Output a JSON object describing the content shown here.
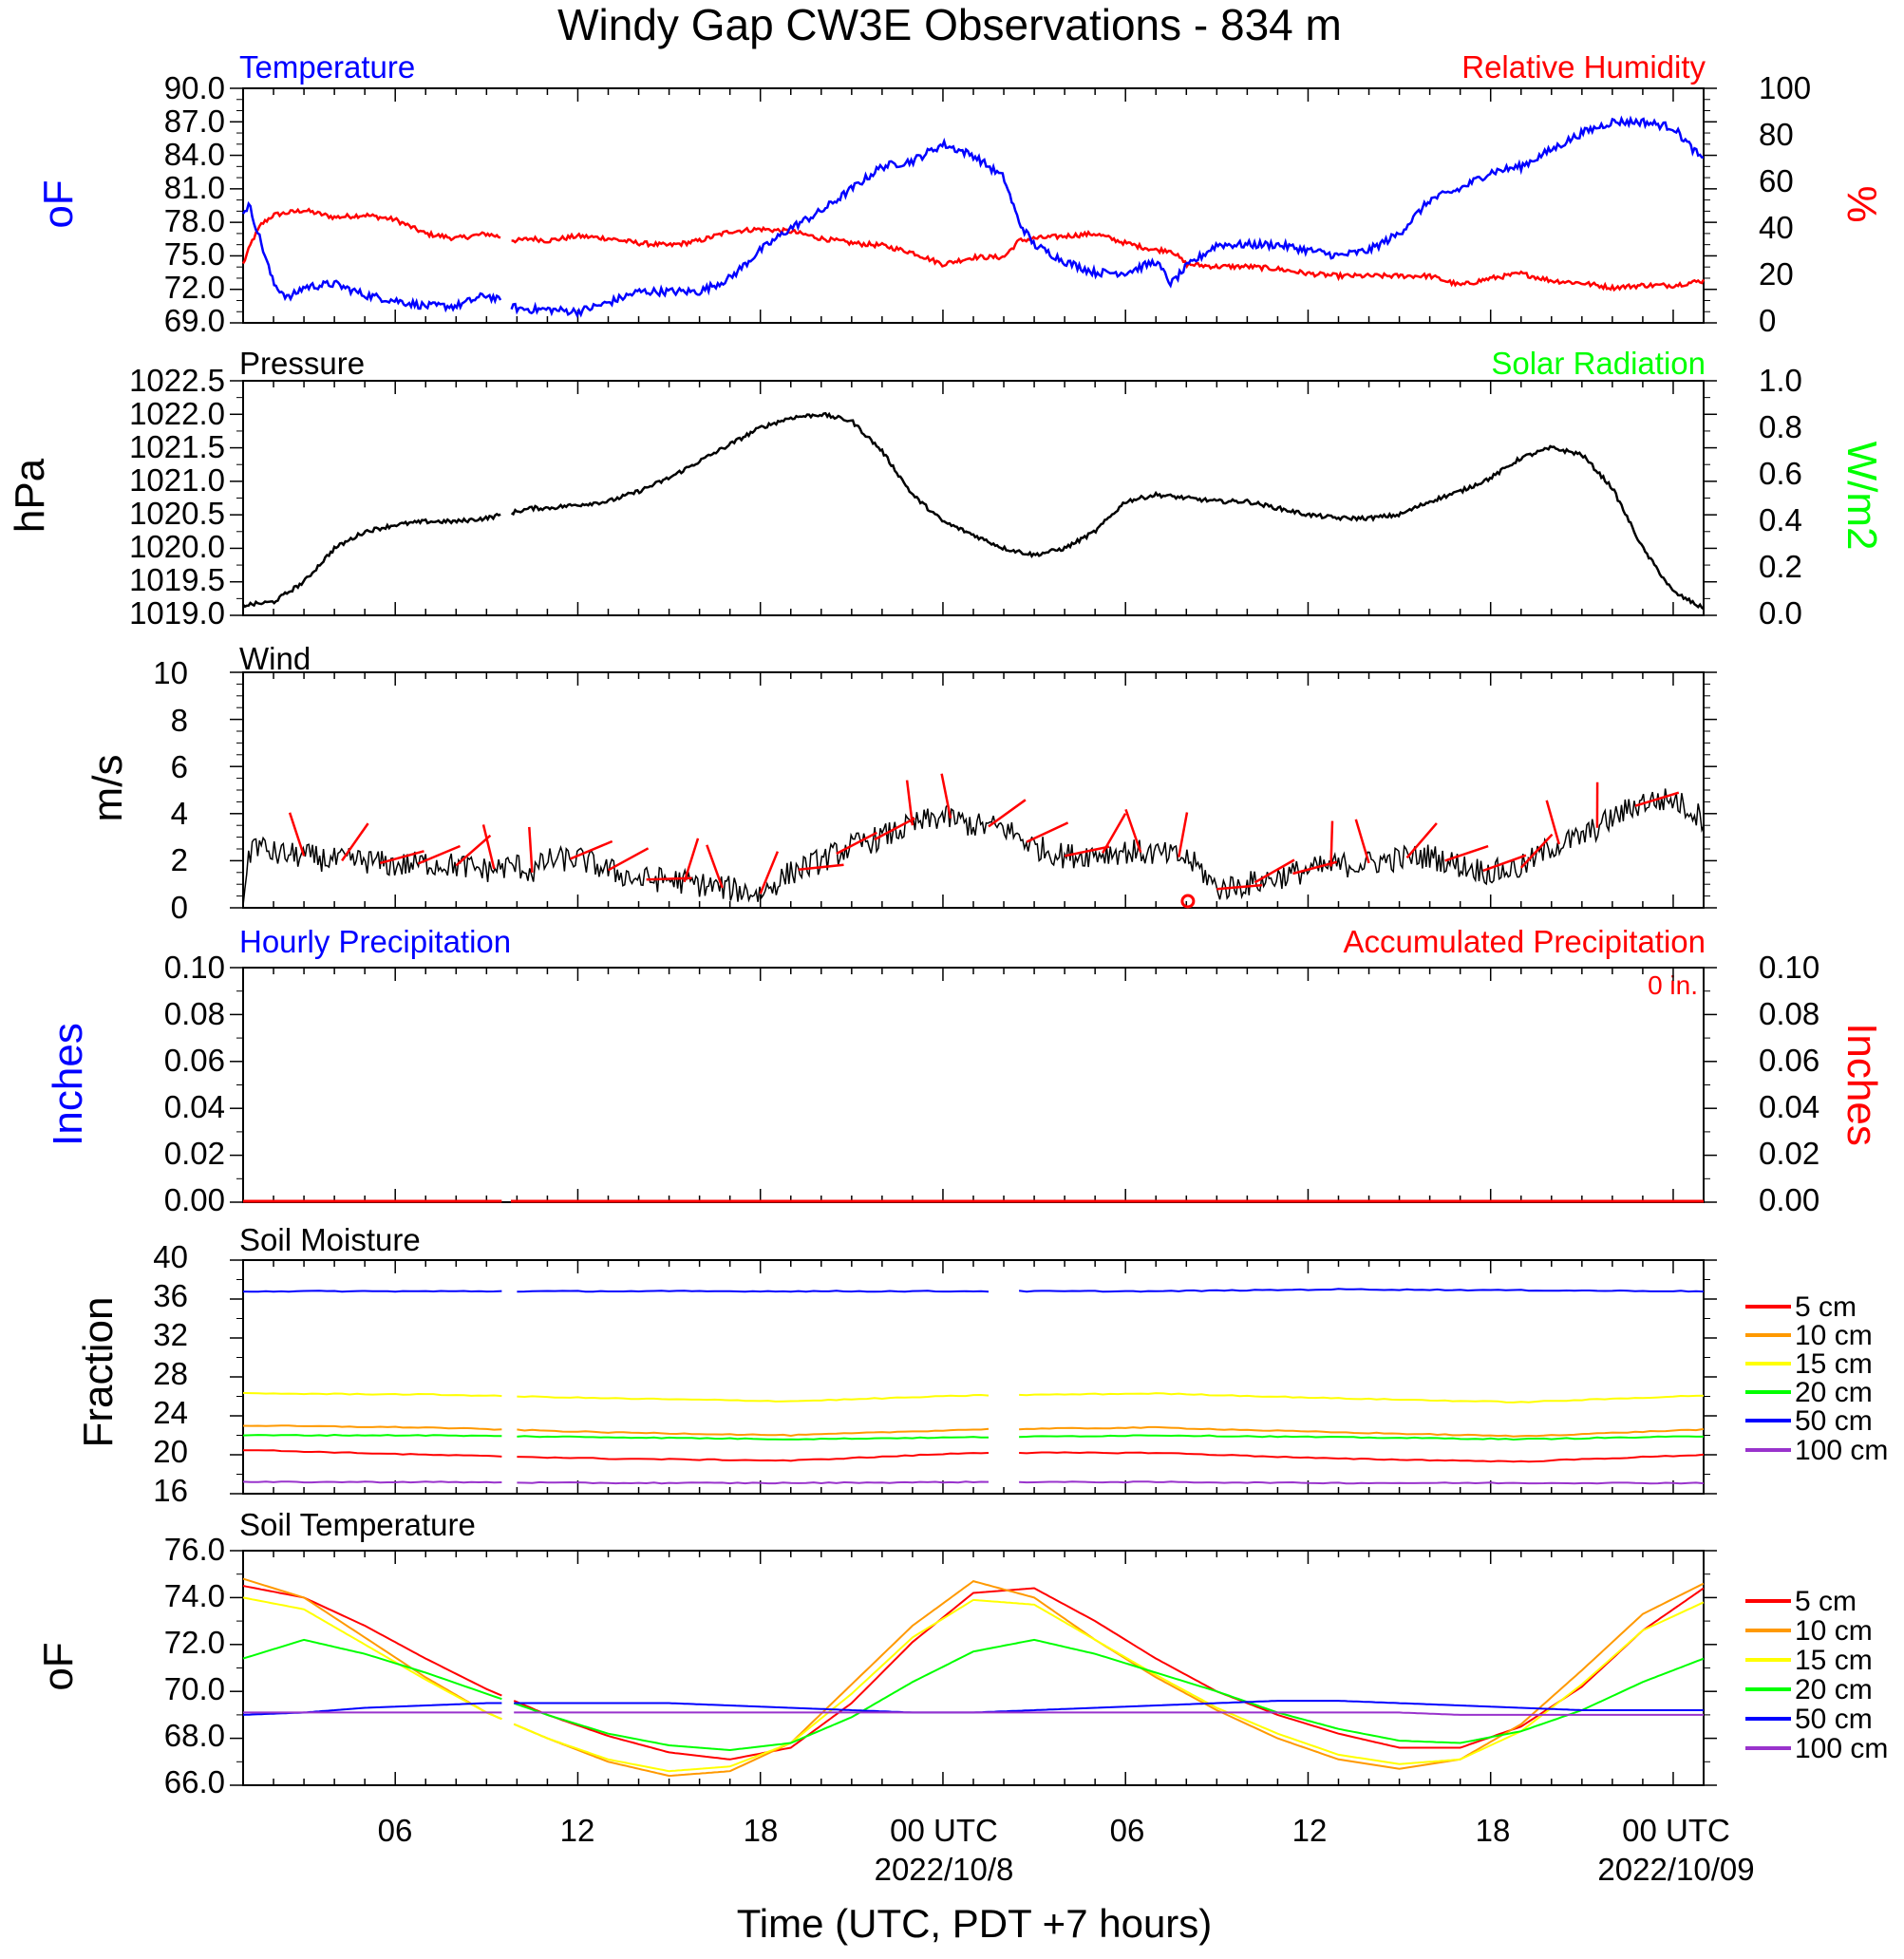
{
  "title": "Windy Gap CW3E Observations - 834 m",
  "colors": {
    "temperature": "#0000ff",
    "humidity": "#ff0000",
    "solar": "#00ff00",
    "black": "#000000",
    "wind_barb": "#ff0000",
    "soil_5cm": "#ff0000",
    "soil_10cm": "#ff9900",
    "soil_15cm": "#ffff00",
    "soil_20cm": "#00ff00",
    "soil_50cm": "#0000ff",
    "soil_100cm": "#9933cc"
  },
  "panel1": {
    "left_title": "Temperature",
    "right_title": "Relative Humidity",
    "left_unit": "oF",
    "right_unit": "%",
    "left_ticks": [
      "90.0",
      "87.0",
      "84.0",
      "81.0",
      "78.0",
      "75.0",
      "72.0",
      "69.0"
    ],
    "right_ticks": [
      "100",
      "80",
      "60",
      "40",
      "20",
      "0"
    ]
  },
  "panel2": {
    "left_title": "Pressure",
    "right_title": "Solar Radiation",
    "left_unit": "hPa",
    "right_unit": "W/m2",
    "left_ticks": [
      "1022.5",
      "1022.0",
      "1021.5",
      "1021.0",
      "1020.5",
      "1020.0",
      "1019.5",
      "1019.0"
    ],
    "right_ticks": [
      "1.0",
      "0.8",
      "0.6",
      "0.4",
      "0.2",
      "0.0"
    ]
  },
  "panel3": {
    "left_title": "Wind",
    "left_unit": "m/s",
    "left_ticks": [
      "10",
      "8",
      "6",
      "4",
      "2",
      "0"
    ]
  },
  "panel4": {
    "left_title": "Hourly Precipitation",
    "right_title": "Accumulated Precipitation",
    "accum_text": "0 in.",
    "left_unit": "Inches",
    "right_unit": "Inches",
    "left_ticks": [
      "0.10",
      "0.08",
      "0.06",
      "0.04",
      "0.02",
      "0.00"
    ],
    "right_ticks": [
      "0.10",
      "0.08",
      "0.06",
      "0.04",
      "0.02",
      "0.00"
    ]
  },
  "panel5": {
    "left_title": "Soil Moisture",
    "left_unit": "Fraction",
    "left_ticks": [
      "40",
      "36",
      "32",
      "28",
      "24",
      "20",
      "16"
    ],
    "legend": [
      "5 cm",
      "10 cm",
      "15 cm",
      "20 cm",
      "50 cm",
      "100 cm"
    ]
  },
  "panel6": {
    "left_title": "Soil Temperature",
    "left_unit": "oF",
    "left_ticks": [
      "76.0",
      "74.0",
      "72.0",
      "70.0",
      "68.0",
      "66.0"
    ],
    "legend": [
      "5 cm",
      "10 cm",
      "15 cm",
      "20 cm",
      "50 cm",
      "100 cm"
    ]
  },
  "x_axis": {
    "ticks": [
      "06",
      "12",
      "18",
      "00 UTC",
      "06",
      "12",
      "18",
      "00 UTC"
    ],
    "dates": [
      "2022/10/8",
      "2022/10/09"
    ],
    "label": "Time (UTC, PDT +7 hours)"
  },
  "chart_data": [
    {
      "type": "line",
      "title": "Temperature",
      "ylabel": "oF",
      "ylim": [
        69,
        90
      ],
      "x_unit": "hours since 2022-10-07 01 UTC",
      "x": [
        0,
        0.2,
        0.5,
        1,
        1.5,
        2,
        3,
        4,
        5,
        6,
        7,
        8,
        9,
        9.5,
        10,
        11,
        12,
        13,
        14,
        15,
        16,
        17,
        18,
        19,
        20,
        21,
        22,
        23,
        24,
        25,
        25.5,
        26,
        27,
        28,
        29,
        29.5,
        30,
        30.5,
        31,
        32,
        33,
        34,
        35,
        36,
        37,
        38,
        39,
        40,
        41,
        42,
        43,
        44,
        45,
        46,
        47,
        47.5,
        48
      ],
      "series": [
        {
          "name": "Temperature",
          "values": [
            79,
            79.5,
            77,
            72.5,
            71.2,
            72.2,
            72.5,
            71.5,
            71,
            70.5,
            70.5,
            71.5,
            70.3,
            70.2,
            70.2,
            70,
            70.8,
            71.8,
            71.8,
            71.8,
            73,
            75.5,
            77.5,
            79,
            81,
            83,
            83.5,
            85,
            84,
            82,
            78,
            76,
            74.5,
            73.5,
            73.5,
            74,
            74.5,
            72.5,
            74,
            76,
            76,
            76,
            75.5,
            75,
            75.5,
            77,
            80,
            81,
            82.5,
            83,
            84.5,
            86,
            87,
            87,
            86.5,
            85,
            83.5
          ]
        }
      ]
    },
    {
      "type": "line",
      "title": "Relative Humidity",
      "ylabel": "%",
      "ylim": [
        0,
        100
      ],
      "x_unit": "hours since 2022-10-07 01 UTC",
      "x": [
        0,
        0.3,
        0.6,
        1,
        2,
        3,
        4,
        5,
        6,
        7,
        8,
        9,
        9.5,
        10,
        11,
        12,
        13,
        14,
        15,
        16,
        17,
        18,
        19,
        20,
        21,
        22,
        23,
        24,
        25,
        25.5,
        26,
        27,
        28,
        29,
        30,
        30.5,
        31,
        32,
        33,
        34,
        35,
        36,
        37,
        38,
        39,
        40,
        41,
        42,
        43,
        44,
        45,
        46,
        47,
        48
      ],
      "series": [
        {
          "name": "Relative Humidity",
          "values": [
            25,
            35,
            42,
            46,
            48,
            45,
            46,
            44,
            38,
            36,
            38,
            35,
            36,
            35,
            37,
            36,
            34,
            33,
            35,
            39,
            40,
            39,
            36,
            34,
            33,
            30,
            25,
            28,
            28,
            35,
            36,
            37,
            38,
            34,
            31,
            31,
            25,
            24,
            24,
            23,
            21,
            20,
            20,
            20,
            20,
            16,
            19,
            21,
            18,
            17,
            15,
            16,
            16,
            18
          ]
        }
      ]
    },
    {
      "type": "line",
      "title": "Pressure",
      "ylabel": "hPa",
      "ylim": [
        1019.0,
        1022.5
      ],
      "x_unit": "hours since 2022-10-07 01 UTC",
      "x": [
        0,
        1,
        2,
        3,
        4,
        5,
        6,
        7,
        8,
        9,
        9.5,
        10,
        11,
        12,
        13,
        14,
        15,
        16,
        17,
        18,
        19,
        20,
        21,
        22,
        23,
        24,
        25,
        26,
        27,
        28,
        29,
        30,
        31,
        32,
        33,
        34,
        35,
        36,
        37,
        38,
        39,
        40,
        41,
        42,
        43,
        44,
        45,
        46,
        47,
        48
      ],
      "series": [
        {
          "name": "Pressure",
          "values": [
            1019.15,
            1019.2,
            1019.5,
            1020.0,
            1020.25,
            1020.35,
            1020.4,
            1020.4,
            1020.45,
            1020.55,
            1020.6,
            1020.6,
            1020.65,
            1020.7,
            1020.85,
            1021.05,
            1021.3,
            1021.55,
            1021.8,
            1021.95,
            1022.0,
            1021.9,
            1021.45,
            1020.8,
            1020.4,
            1020.2,
            1020.0,
            1019.9,
            1020.0,
            1020.25,
            1020.7,
            1020.8,
            1020.75,
            1020.7,
            1020.7,
            1020.6,
            1020.5,
            1020.45,
            1020.45,
            1020.5,
            1020.7,
            1020.85,
            1021.05,
            1021.35,
            1021.5,
            1021.4,
            1020.9,
            1020.0,
            1019.35,
            1019.1
          ]
        }
      ]
    },
    {
      "type": "line",
      "title": "Wind",
      "ylabel": "m/s",
      "ylim": [
        0,
        10
      ],
      "x_unit": "hours since 2022-10-07 01 UTC",
      "x": [
        0,
        0.3,
        1,
        2,
        3,
        4,
        5,
        6,
        7,
        8,
        9,
        9.5,
        10,
        11,
        12,
        13,
        14,
        15,
        16,
        17,
        18,
        19,
        20,
        21,
        22,
        23,
        24,
        25,
        26,
        27,
        28,
        29,
        30,
        31,
        31.5,
        32,
        33,
        34,
        35,
        36,
        37,
        38,
        39,
        40,
        41,
        42,
        43,
        44,
        45,
        46,
        47,
        48
      ],
      "series": [
        {
          "name": "Wind speed",
          "values": [
            0.5,
            2.8,
            2.3,
            2.2,
            2.0,
            2.0,
            1.8,
            1.9,
            1.8,
            1.6,
            1.8,
            1.5,
            2.0,
            2.1,
            1.6,
            1.2,
            1.2,
            1.0,
            0.8,
            0.6,
            1.5,
            2.0,
            2.6,
            3.0,
            3.5,
            3.9,
            3.5,
            3.4,
            2.6,
            2.2,
            2.3,
            2.4,
            2.3,
            2.1,
            1.6,
            0.8,
            1.0,
            1.3,
            1.6,
            1.8,
            1.9,
            2.1,
            2.2,
            1.8,
            1.5,
            1.7,
            2.6,
            3.0,
            3.8,
            4.5,
            4.6,
            3.8
          ]
        }
      ]
    },
    {
      "type": "line",
      "title": "Hourly Precipitation",
      "ylabel": "Inches",
      "ylim": [
        0,
        0.1
      ],
      "x_unit": "hours since 2022-10-07 01 UTC",
      "x": [
        0,
        48
      ],
      "series": [
        {
          "name": "Hourly Precipitation",
          "values": [
            0,
            0
          ]
        },
        {
          "name": "Accumulated Precipitation",
          "values": [
            0,
            0
          ]
        }
      ]
    },
    {
      "type": "line",
      "title": "Soil Moisture",
      "ylabel": "Fraction",
      "ylim": [
        16,
        40
      ],
      "x_unit": "hours since 2022-10-07 01 UTC",
      "x": [
        0,
        6,
        12,
        18,
        24,
        30,
        36,
        42,
        48
      ],
      "series": [
        {
          "name": "5 cm",
          "values": [
            20.5,
            20.0,
            19.6,
            19.4,
            20.2,
            20.2,
            19.6,
            19.3,
            20.0
          ]
        },
        {
          "name": "10 cm",
          "values": [
            23.0,
            22.8,
            22.3,
            22.0,
            22.6,
            22.8,
            22.3,
            21.9,
            22.6
          ]
        },
        {
          "name": "15 cm",
          "values": [
            26.3,
            26.2,
            25.8,
            25.5,
            26.1,
            26.3,
            25.8,
            25.4,
            26.1
          ]
        },
        {
          "name": "20 cm",
          "values": [
            22.0,
            22.0,
            21.8,
            21.6,
            21.8,
            22.0,
            21.8,
            21.6,
            21.9
          ]
        },
        {
          "name": "50 cm",
          "values": [
            36.8,
            36.8,
            36.8,
            36.8,
            36.8,
            36.8,
            37.0,
            36.9,
            36.8
          ]
        },
        {
          "name": "100 cm",
          "values": [
            17.2,
            17.2,
            17.1,
            17.1,
            17.2,
            17.2,
            17.1,
            17.1,
            17.1
          ]
        }
      ]
    },
    {
      "type": "line",
      "title": "Soil Temperature",
      "ylabel": "oF",
      "ylim": [
        66,
        76
      ],
      "x_unit": "hours since 2022-10-07 01 UTC",
      "x": [
        0,
        2,
        4,
        6,
        8,
        10,
        12,
        14,
        16,
        18,
        20,
        22,
        24,
        26,
        28,
        30,
        32,
        34,
        36,
        38,
        40,
        42,
        44,
        46,
        48
      ],
      "series": [
        {
          "name": "5 cm",
          "values": [
            74.5,
            74.0,
            72.8,
            71.4,
            70.1,
            69.0,
            68.1,
            67.4,
            67.1,
            67.6,
            69.5,
            72.1,
            74.2,
            74.4,
            73.0,
            71.4,
            70.0,
            69.0,
            68.2,
            67.6,
            67.6,
            68.5,
            70.2,
            72.6,
            74.4
          ]
        },
        {
          "name": "10 cm",
          "values": [
            74.8,
            74.0,
            72.3,
            70.6,
            69.1,
            68.0,
            67.0,
            66.4,
            66.6,
            67.8,
            70.3,
            72.8,
            74.7,
            74.0,
            72.2,
            70.6,
            69.2,
            68.0,
            67.1,
            66.7,
            67.1,
            68.6,
            70.9,
            73.3,
            74.6
          ]
        },
        {
          "name": "15 cm",
          "values": [
            74.0,
            73.5,
            72.0,
            70.5,
            69.1,
            68.0,
            67.1,
            66.6,
            66.8,
            67.8,
            69.9,
            72.3,
            73.9,
            73.7,
            72.2,
            70.7,
            69.3,
            68.2,
            67.3,
            66.9,
            67.1,
            68.3,
            70.3,
            72.6,
            73.8
          ]
        },
        {
          "name": "20 cm",
          "values": [
            71.4,
            72.2,
            71.6,
            70.8,
            69.9,
            69.0,
            68.2,
            67.7,
            67.5,
            67.8,
            68.9,
            70.4,
            71.7,
            72.2,
            71.6,
            70.8,
            70.0,
            69.1,
            68.4,
            67.9,
            67.8,
            68.3,
            69.2,
            70.4,
            71.4
          ]
        },
        {
          "name": "50 cm",
          "values": [
            69.0,
            69.1,
            69.3,
            69.4,
            69.5,
            69.5,
            69.5,
            69.5,
            69.4,
            69.3,
            69.2,
            69.1,
            69.1,
            69.2,
            69.3,
            69.4,
            69.5,
            69.6,
            69.6,
            69.5,
            69.4,
            69.3,
            69.2,
            69.2,
            69.2
          ]
        },
        {
          "name": "100 cm",
          "values": [
            69.1,
            69.1,
            69.1,
            69.1,
            69.1,
            69.1,
            69.1,
            69.1,
            69.1,
            69.1,
            69.1,
            69.1,
            69.1,
            69.1,
            69.1,
            69.1,
            69.1,
            69.1,
            69.1,
            69.1,
            69.0,
            69.0,
            69.0,
            69.0,
            69.0
          ]
        }
      ]
    }
  ]
}
